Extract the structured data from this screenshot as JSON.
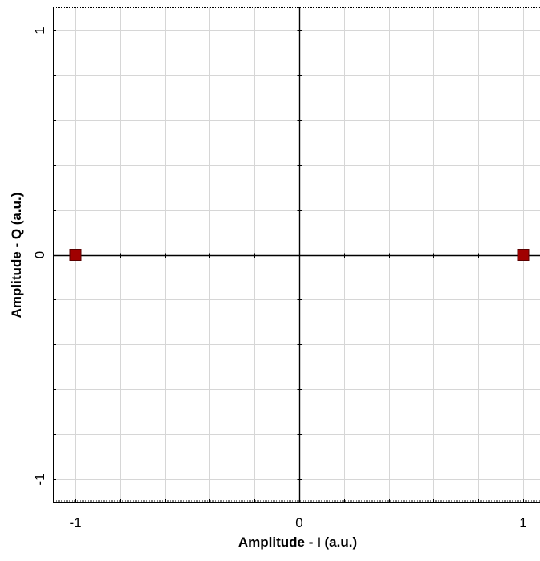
{
  "chart_data": {
    "type": "scatter",
    "title": "",
    "xlabel": "Amplitude - I (a.u.)",
    "ylabel": "Amplitude - Q (a.u.)",
    "xlim": [
      -1.1,
      1.1
    ],
    "ylim": [
      -1.1,
      1.1
    ],
    "xticks": [
      -1,
      0,
      1
    ],
    "xtick_labels": [
      "-1",
      "0",
      "1"
    ],
    "yticks": [
      -1,
      0,
      1
    ],
    "ytick_labels": [
      "-1",
      "0",
      "1"
    ],
    "grid": true,
    "legend": "none",
    "marker": "square",
    "marker_color": "#a00000",
    "series": [
      {
        "points": [
          {
            "x": -1,
            "y": 0
          },
          {
            "x": 1,
            "y": 0
          }
        ]
      }
    ]
  }
}
